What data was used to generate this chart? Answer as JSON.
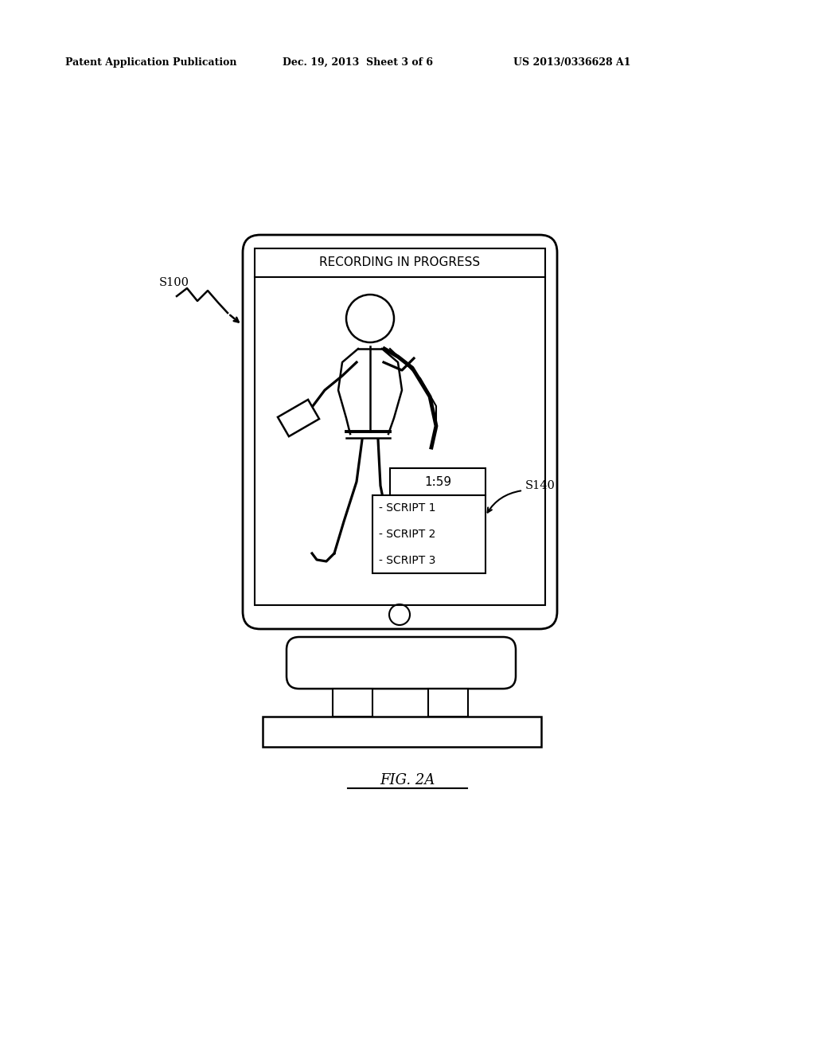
{
  "bg_color": "#ffffff",
  "text_color": "#000000",
  "header_left": "Patent Application Publication",
  "header_mid": "Dec. 19, 2013  Sheet 3 of 6",
  "header_right": "US 2013/0336628 A1",
  "fig_label": "FIG. 2A",
  "label_s100": "S100",
  "label_s140": "S140",
  "recording_text": "RECORDING IN PROGRESS",
  "timer_text": "1:59",
  "script_lines": [
    "- SCRIPT 1",
    "- SCRIPT 2",
    "- SCRIPT 3"
  ]
}
